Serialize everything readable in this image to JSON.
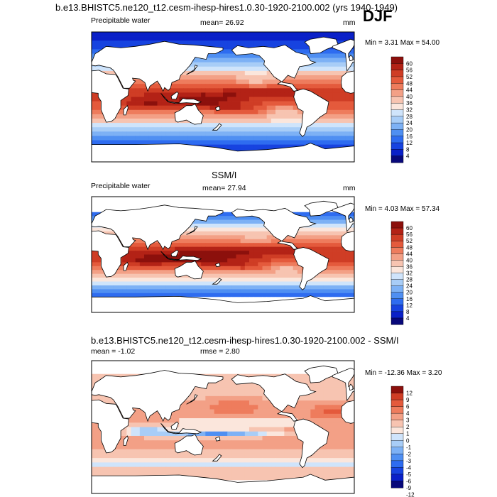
{
  "season": "DJF",
  "colors": {
    "seq": [
      "#08087a",
      "#0a20c8",
      "#1743e0",
      "#2e6cf0",
      "#4f8ff2",
      "#7db1f5",
      "#a8cdf7",
      "#cfe4fb",
      "#fbe6dc",
      "#f7c4b1",
      "#f3a086",
      "#ee7c5d",
      "#e45a3c",
      "#cf3d25",
      "#b32216",
      "#8c100c"
    ],
    "diff": [
      "#08087a",
      "#0a20c8",
      "#1743e0",
      "#2e6cf0",
      "#4f8ff2",
      "#7db1f5",
      "#a8cdf7",
      "#cfe4fb",
      "#fbe6dc",
      "#f7c4b1",
      "#f3a086",
      "#ee7c5d",
      "#e45a3c",
      "#cf3d25",
      "#8c100c"
    ],
    "land": "#ffffff",
    "coast": "#000000"
  },
  "panels": [
    {
      "title": "b.e13.BHISTC5.ne120_t12.cesm-ihesp-hires1.0.30-1920-2100.002 (yrs 1940-1949)",
      "variable": "Precipitable water",
      "mean_label": "mean=  26.92",
      "units": "mm",
      "minmax_label": "Min =   3.31 Max =  54.00"
    },
    {
      "title": "SSM/I",
      "variable": "Precipitable water",
      "mean_label": "mean=  27.94",
      "units": "mm",
      "minmax_label": "Min =   4.03 Max =  57.34"
    },
    {
      "title": "b.e13.BHISTC5.ne120_t12.cesm-ihesp-hires1.0.30-1920-2100.002 - SSM/I",
      "mean_label": "mean =  -1.02",
      "rmse_label": "rmse =   2.80",
      "minmax_label": "Min = -12.36 Max =   3.20"
    }
  ],
  "chart_data": [
    {
      "type": "heatmap",
      "title": "b.e13.BHISTC5.ne120_t12.cesm-ihesp-hires1.0.30-1920-2100.002 (yrs 1940-1949)",
      "subtitle": "Precipitable water",
      "mean": 26.92,
      "min": 3.31,
      "max": 54.0,
      "units": "mm",
      "colorbar_levels": [
        4,
        8,
        12,
        16,
        20,
        24,
        28,
        32,
        36,
        40,
        44,
        48,
        52,
        56,
        60
      ],
      "colorbar_labels": [
        "60",
        "56",
        "52",
        "48",
        "44",
        "40",
        "36",
        "32",
        "28",
        "24",
        "20",
        "16",
        "12",
        "8",
        "4"
      ],
      "domain": "global, lon 0-360, lat -90 to 90"
    },
    {
      "type": "heatmap",
      "title": "SSM/I",
      "subtitle": "Precipitable water",
      "mean": 27.94,
      "min": 4.03,
      "max": 57.34,
      "units": "mm",
      "colorbar_levels": [
        4,
        8,
        12,
        16,
        20,
        24,
        28,
        32,
        36,
        40,
        44,
        48,
        52,
        56,
        60
      ],
      "colorbar_labels": [
        "60",
        "56",
        "52",
        "48",
        "44",
        "40",
        "36",
        "32",
        "28",
        "24",
        "20",
        "16",
        "12",
        "8",
        "4"
      ],
      "domain": "global ocean, lon 0-360, lat -90 to 90"
    },
    {
      "type": "heatmap",
      "title": "b.e13.BHISTC5.ne120_t12.cesm-ihesp-hires1.0.30-1920-2100.002 - SSM/I",
      "mean": -1.02,
      "rmse": 2.8,
      "min": -12.36,
      "max": 3.2,
      "colorbar_levels": [
        -12,
        -9,
        -6,
        -5,
        -4,
        -3,
        -2,
        -1,
        0,
        1,
        2,
        3,
        4,
        6,
        9,
        12
      ],
      "colorbar_labels": [
        "12",
        "9",
        "6",
        "4",
        "3",
        "2",
        "1",
        "0",
        "-1",
        "-2",
        "-3",
        "-4",
        "-5",
        "-6",
        "-9",
        "-12"
      ],
      "domain": "global ocean, lon 0-360, lat -90 to 90"
    }
  ]
}
